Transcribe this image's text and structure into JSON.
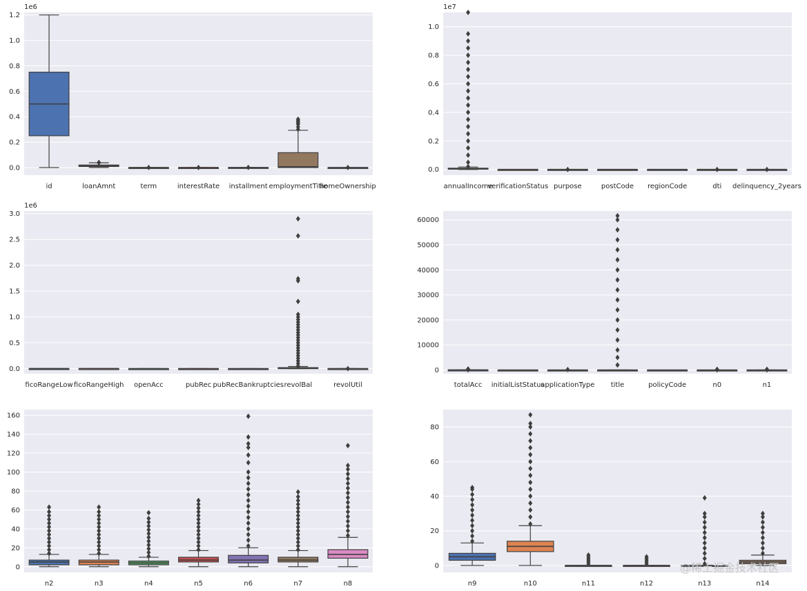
{
  "watermark": "@稀土掘金技术社区",
  "chart_data": [
    {
      "type": "box",
      "offset_label": "1e6",
      "ylim": [
        -0.06,
        1.22
      ],
      "yticks": [
        0.0,
        0.2,
        0.4,
        0.6,
        0.8,
        1.0,
        1.2
      ],
      "ytick_labels": [
        "0.0",
        "0.2",
        "0.4",
        "0.6",
        "0.8",
        "1.0",
        "1.2"
      ],
      "categories": [
        "id",
        "loanAmnt",
        "term",
        "interestRate",
        "installment",
        "employmentTitle",
        "homeOwnership"
      ],
      "colors": [
        "#4c72b0",
        "#dd8452",
        "#55a868",
        "#c44e52",
        "#8172b3",
        "#937860",
        "#da8bc3"
      ],
      "boxes": [
        {
          "min": 0,
          "q1": 0.25,
          "median": 0.5,
          "q3": 0.75,
          "max": 1.2,
          "outliers": []
        },
        {
          "min": 0.0005,
          "q1": 0.008,
          "median": 0.013,
          "q3": 0.02,
          "max": 0.0375,
          "outliers": [
            0.038,
            0.039,
            0.04
          ]
        },
        {
          "min": 0,
          "q1": 3e-06,
          "median": 3e-06,
          "q3": 3e-06,
          "max": 5e-06,
          "outliers": [
            5e-06
          ]
        },
        {
          "min": 0,
          "q1": 1e-05,
          "median": 1.3e-05,
          "q3": 1.6e-05,
          "max": 3e-05,
          "outliers": [
            3.1e-05
          ]
        },
        {
          "min": 0,
          "q1": 0.0002,
          "median": 0.0004,
          "q3": 0.0006,
          "max": 0.0012,
          "outliers": [
            0.0013
          ]
        },
        {
          "min": 0,
          "q1": 0.0,
          "median": 0.006,
          "q3": 0.117,
          "max": 0.293,
          "outliers": [
            0.3,
            0.32,
            0.34,
            0.35,
            0.36,
            0.37,
            0.38
          ]
        },
        {
          "min": 0,
          "q1": 0,
          "median": 0,
          "q3": 1e-06,
          "max": 2e-06,
          "outliers": [
            5e-06
          ]
        }
      ]
    },
    {
      "type": "box",
      "offset_label": "1e7",
      "ylim": [
        -0.04,
        1.1
      ],
      "yticks": [
        0.0,
        0.2,
        0.4,
        0.6,
        0.8,
        1.0
      ],
      "ytick_labels": [
        "0.0",
        "0.2",
        "0.4",
        "0.6",
        "0.8",
        "1.0"
      ],
      "categories": [
        "annualIncome",
        "verificationStatus",
        "purpose",
        "postCode",
        "regionCode",
        "dti",
        "delinquency_2years"
      ],
      "colors": [
        "#4c72b0",
        "#dd8452",
        "#55a868",
        "#c44e52",
        "#8172b3",
        "#937860",
        "#da8bc3"
      ],
      "boxes": [
        {
          "min": 0,
          "q1": 0.0045,
          "median": 0.0065,
          "q3": 0.009,
          "max": 0.017,
          "outliers": [
            0.02,
            0.05,
            0.1,
            0.15,
            0.2,
            0.25,
            0.3,
            0.35,
            0.4,
            0.45,
            0.5,
            0.55,
            0.6,
            0.65,
            0.7,
            0.75,
            0.8,
            0.85,
            0.9,
            0.95,
            1.1
          ]
        },
        {
          "min": 0,
          "q1": 0,
          "median": 0,
          "q3": 0,
          "max": 0,
          "outliers": []
        },
        {
          "min": 0,
          "q1": 0,
          "median": 0,
          "q3": 0,
          "max": 0,
          "outliers": [
            0.0001
          ]
        },
        {
          "min": 0,
          "q1": 1e-05,
          "median": 2e-05,
          "q3": 3e-05,
          "max": 4e-05,
          "outliers": []
        },
        {
          "min": 0,
          "q1": 0,
          "median": 0,
          "q3": 0,
          "max": 0,
          "outliers": []
        },
        {
          "min": 0,
          "q1": 0,
          "median": 0,
          "q3": 0,
          "max": 0,
          "outliers": [
            0.0001
          ]
        },
        {
          "min": 0,
          "q1": 0,
          "median": 0,
          "q3": 0,
          "max": 0,
          "outliers": [
            0.0001
          ]
        }
      ]
    },
    {
      "type": "box",
      "offset_label": "1e6",
      "ylim": [
        -0.1,
        3.05
      ],
      "yticks": [
        0.0,
        0.5,
        1.0,
        1.5,
        2.0,
        2.5,
        3.0
      ],
      "ytick_labels": [
        "0.0",
        "0.5",
        "1.0",
        "1.5",
        "2.0",
        "2.5",
        "3.0"
      ],
      "categories": [
        "ficoRangeLow",
        "ficoRangeHigh",
        "openAcc",
        "pubRec",
        "pubRecBankruptcies",
        "revolBal",
        "revolUtil"
      ],
      "colors": [
        "#4c72b0",
        "#dd8452",
        "#55a868",
        "#c44e52",
        "#8172b3",
        "#937860",
        "#da8bc3"
      ],
      "boxes": [
        {
          "min": 0.0006,
          "q1": 0.00066,
          "median": 0.00069,
          "q3": 0.00072,
          "max": 0.00085,
          "outliers": []
        },
        {
          "min": 0.0006,
          "q1": 0.00067,
          "median": 0.00069,
          "q3": 0.00072,
          "max": 0.00085,
          "outliers": []
        },
        {
          "min": 0,
          "q1": 8e-06,
          "median": 1.1e-05,
          "q3": 1.4e-05,
          "max": 3e-05,
          "outliers": []
        },
        {
          "min": 0,
          "q1": 0,
          "median": 0,
          "q3": 0,
          "max": 0,
          "outliers": []
        },
        {
          "min": 0,
          "q1": 0,
          "median": 0,
          "q3": 0,
          "max": 0,
          "outliers": []
        },
        {
          "min": 0,
          "q1": 0.006,
          "median": 0.011,
          "q3": 0.019,
          "max": 0.04,
          "outliers": [
            0.05,
            0.1,
            0.15,
            0.2,
            0.25,
            0.3,
            0.35,
            0.4,
            0.45,
            0.5,
            0.55,
            0.6,
            0.65,
            0.7,
            0.75,
            0.8,
            0.85,
            0.9,
            0.95,
            1.0,
            1.05,
            1.3,
            1.7,
            1.74,
            2.57,
            2.9
          ]
        },
        {
          "min": 0,
          "q1": 3e-05,
          "median": 5e-05,
          "q3": 7e-05,
          "max": 0.00014,
          "outliers": [
            0.0001
          ]
        }
      ]
    },
    {
      "type": "box",
      "offset_label": "",
      "ylim": [
        -1500,
        63500
      ],
      "yticks": [
        0,
        10000,
        20000,
        30000,
        40000,
        50000,
        60000
      ],
      "ytick_labels": [
        "0",
        "10000",
        "20000",
        "30000",
        "40000",
        "50000",
        "60000"
      ],
      "categories": [
        "totalAcc",
        "initialListStatus",
        "applicationType",
        "title",
        "policyCode",
        "n0",
        "n1"
      ],
      "colors": [
        "#4c72b0",
        "#dd8452",
        "#55a868",
        "#c44e52",
        "#8172b3",
        "#937860",
        "#da8bc3"
      ],
      "boxes": [
        {
          "min": 2,
          "q1": 15,
          "median": 23,
          "q3": 32,
          "max": 57,
          "outliers": [
            90,
            150,
            200,
            250,
            300,
            350,
            400
          ]
        },
        {
          "min": 0,
          "q1": 0,
          "median": 0,
          "q3": 1,
          "max": 1,
          "outliers": []
        },
        {
          "min": 0,
          "q1": 0,
          "median": 0,
          "q3": 0,
          "max": 0,
          "outliers": [
            200
          ]
        },
        {
          "min": 0,
          "q1": 0,
          "median": 1,
          "q3": 5,
          "max": 10,
          "outliers": [
            2000,
            5000,
            8000,
            12000,
            16000,
            20000,
            24000,
            28000,
            32000,
            36000,
            40000,
            44000,
            48000,
            52000,
            56000,
            60000,
            61600
          ]
        },
        {
          "min": 1,
          "q1": 1,
          "median": 1,
          "q3": 1,
          "max": 1,
          "outliers": []
        },
        {
          "min": 0,
          "q1": 0,
          "median": 0,
          "q3": 0,
          "max": 0,
          "outliers": [
            100,
            200,
            300
          ]
        },
        {
          "min": 0,
          "q1": 2,
          "median": 3,
          "q3": 5,
          "max": 9,
          "outliers": [
            100,
            200,
            300
          ]
        }
      ]
    },
    {
      "type": "box",
      "offset_label": "",
      "ylim": [
        -6,
        166
      ],
      "yticks": [
        0,
        20,
        40,
        60,
        80,
        100,
        120,
        140,
        160
      ],
      "ytick_labels": [
        "0",
        "20",
        "40",
        "60",
        "80",
        "100",
        "120",
        "140",
        "160"
      ],
      "categories": [
        "n2",
        "n3",
        "n4",
        "n5",
        "n6",
        "n7",
        "n8"
      ],
      "colors": [
        "#4c72b0",
        "#dd8452",
        "#55a868",
        "#c44e52",
        "#8172b3",
        "#937860",
        "#da8bc3"
      ],
      "boxes": [
        {
          "min": 0,
          "q1": 2,
          "median": 5,
          "q3": 7,
          "max": 13,
          "outliers": [
            14,
            18,
            22,
            26,
            30,
            34,
            38,
            42,
            46,
            50,
            54,
            58,
            63
          ]
        },
        {
          "min": 0,
          "q1": 2,
          "median": 5,
          "q3": 7,
          "max": 13,
          "outliers": [
            14,
            18,
            22,
            26,
            30,
            34,
            38,
            42,
            46,
            50,
            54,
            58,
            63
          ]
        },
        {
          "min": 0,
          "q1": 2,
          "median": 4,
          "q3": 6,
          "max": 10,
          "outliers": [
            11,
            15,
            19,
            23,
            27,
            31,
            35,
            39,
            43,
            47,
            51,
            57
          ]
        },
        {
          "min": 0,
          "q1": 5,
          "median": 7,
          "q3": 10,
          "max": 17,
          "outliers": [
            18,
            22,
            26,
            30,
            34,
            38,
            42,
            46,
            50,
            54,
            58,
            62,
            66,
            70
          ]
        },
        {
          "min": 0,
          "q1": 4,
          "median": 7,
          "q3": 12,
          "max": 20,
          "outliers": [
            22,
            28,
            34,
            40,
            46,
            52,
            58,
            64,
            70,
            76,
            82,
            88,
            94,
            100,
            110,
            118,
            126,
            130,
            137,
            159
          ]
        },
        {
          "min": 0,
          "q1": 5,
          "median": 7,
          "q3": 10,
          "max": 17,
          "outliers": [
            18,
            22,
            26,
            30,
            34,
            38,
            42,
            46,
            50,
            54,
            58,
            62,
            66,
            70,
            74,
            79
          ]
        },
        {
          "min": 0,
          "q1": 9,
          "median": 13,
          "q3": 18,
          "max": 31,
          "outliers": [
            33,
            38,
            43,
            48,
            53,
            58,
            63,
            68,
            73,
            78,
            83,
            88,
            93,
            98,
            103,
            107,
            128
          ]
        }
      ]
    },
    {
      "type": "box",
      "offset_label": "",
      "ylim": [
        -4,
        90
      ],
      "yticks": [
        0,
        20,
        40,
        60,
        80
      ],
      "ytick_labels": [
        "0",
        "20",
        "40",
        "60",
        "80"
      ],
      "categories": [
        "n9",
        "n10",
        "n11",
        "n12",
        "n13",
        "n14"
      ],
      "colors": [
        "#4c72b0",
        "#dd8452",
        "#55a868",
        "#c44e52",
        "#8172b3",
        "#937860"
      ],
      "boxes": [
        {
          "min": 0,
          "q1": 3,
          "median": 5,
          "q3": 7,
          "max": 13,
          "outliers": [
            14,
            17,
            20,
            23,
            26,
            29,
            32,
            35,
            38,
            41,
            44,
            45
          ]
        },
        {
          "min": 0,
          "q1": 8,
          "median": 11,
          "q3": 14,
          "max": 23,
          "outliers": [
            24,
            28,
            32,
            36,
            40,
            44,
            48,
            52,
            56,
            60,
            64,
            68,
            72,
            76,
            80,
            82,
            87
          ]
        },
        {
          "min": 0,
          "q1": 0,
          "median": 0,
          "q3": 0,
          "max": 0,
          "outliers": [
            1,
            2,
            3,
            4,
            5,
            6
          ]
        },
        {
          "min": 0,
          "q1": 0,
          "median": 0,
          "q3": 0,
          "max": 0,
          "outliers": [
            1,
            2,
            3,
            4,
            5
          ]
        },
        {
          "min": 0,
          "q1": 0,
          "median": 0,
          "q3": 0,
          "max": 0,
          "outliers": [
            1,
            4,
            7,
            10,
            13,
            16,
            19,
            22,
            25,
            28,
            30,
            39
          ]
        },
        {
          "min": 0,
          "q1": 1,
          "median": 2,
          "q3": 3,
          "max": 6,
          "outliers": [
            7,
            10,
            13,
            16,
            19,
            22,
            25,
            28,
            30
          ]
        }
      ]
    }
  ]
}
